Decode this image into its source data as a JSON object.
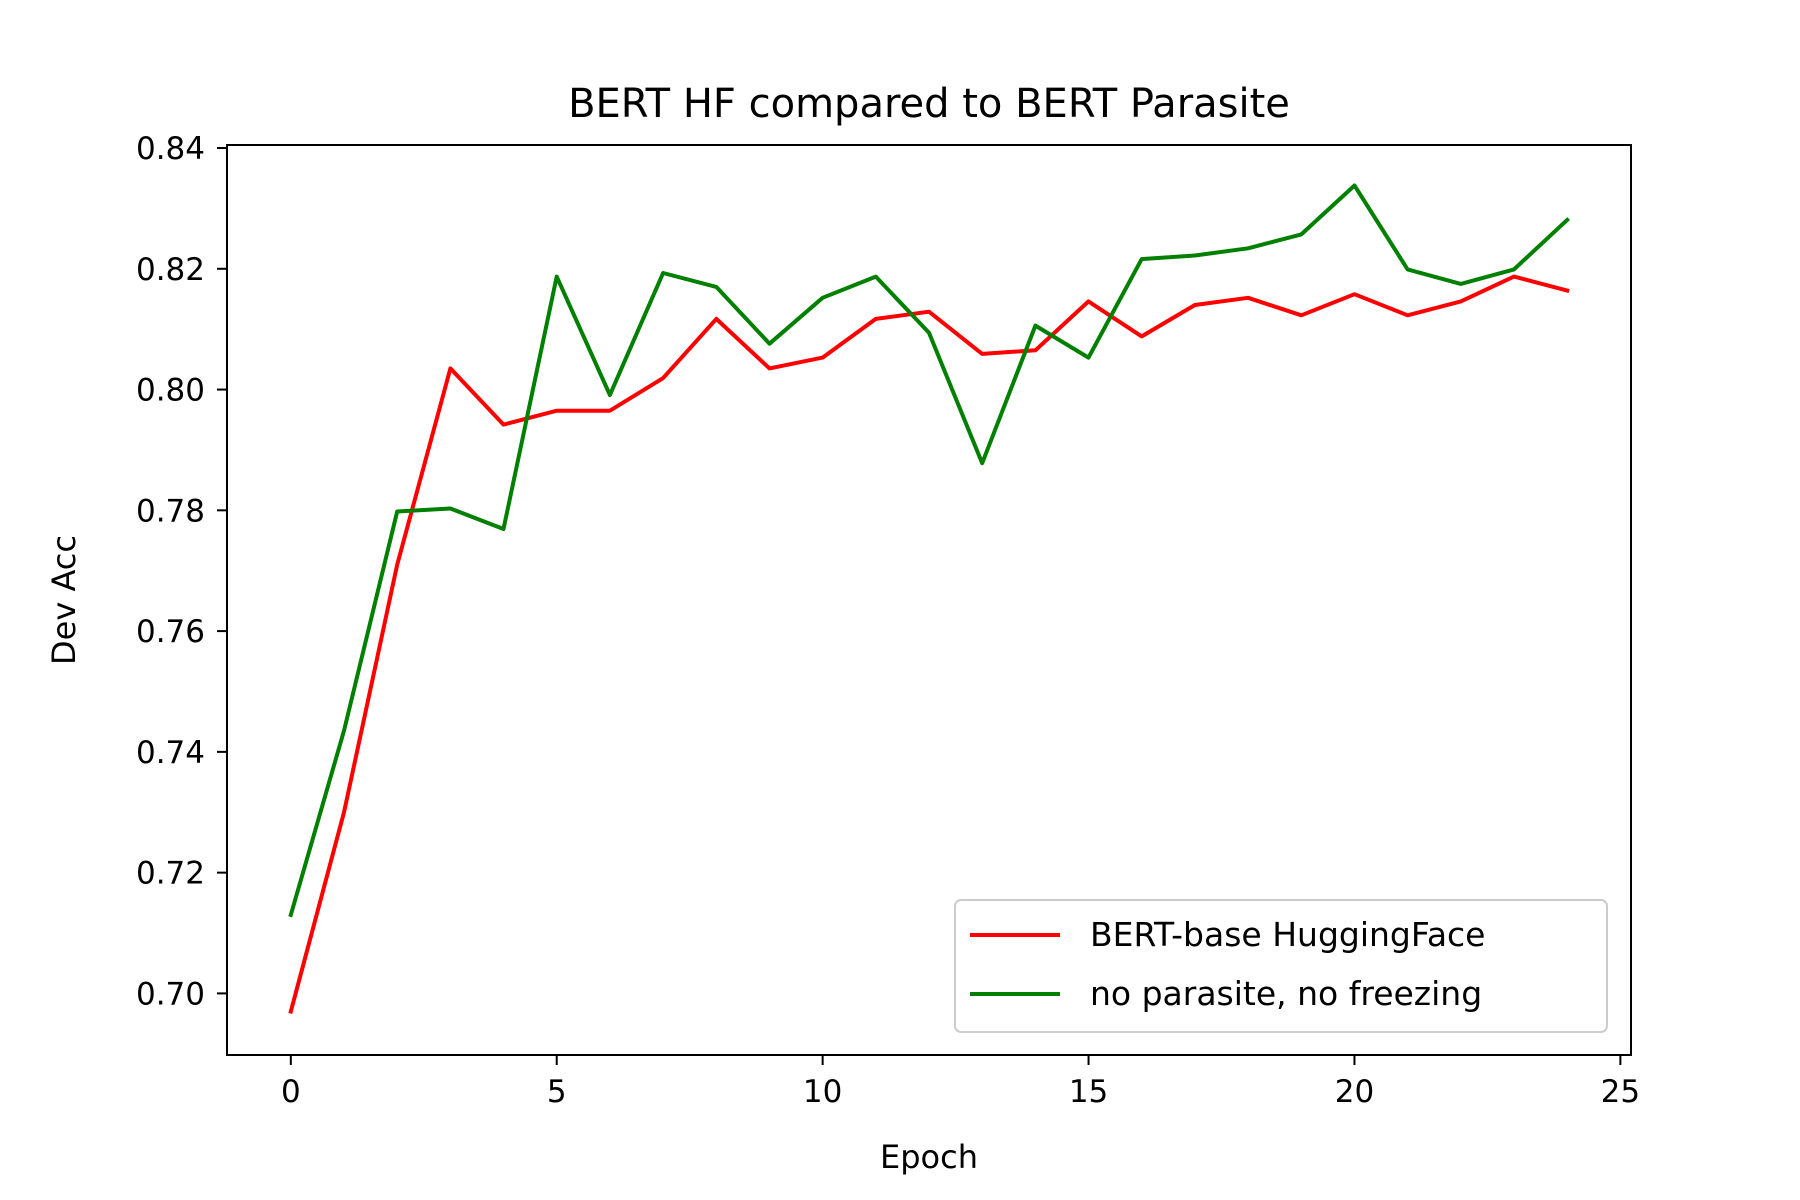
{
  "chart_data": {
    "type": "line",
    "title": "BERT HF compared to BERT Parasite",
    "xlabel": "Epoch",
    "ylabel": "Dev Acc",
    "xlim": [
      -1.2,
      25.2
    ],
    "ylim": [
      0.6898,
      0.8405
    ],
    "xticks": [
      0,
      5,
      10,
      15,
      20,
      25
    ],
    "xtick_labels": [
      "0",
      "5",
      "10",
      "15",
      "20",
      "25"
    ],
    "yticks": [
      0.7,
      0.72,
      0.74,
      0.76,
      0.78,
      0.8,
      0.82,
      0.84
    ],
    "ytick_labels": [
      "0.70",
      "0.72",
      "0.74",
      "0.76",
      "0.78",
      "0.80",
      "0.82",
      "0.84"
    ],
    "grid": false,
    "legend_position": "bottom-right",
    "x": [
      0,
      1,
      2,
      3,
      4,
      5,
      6,
      7,
      8,
      9,
      10,
      11,
      12,
      13,
      14,
      15,
      16,
      17,
      18,
      19,
      20,
      21,
      22,
      23,
      24
    ],
    "series": [
      {
        "name": "BERT-base HuggingFace",
        "color": "#ff0000",
        "values": [
          0.697,
          0.73,
          0.771,
          0.8035,
          0.7942,
          0.7965,
          0.7965,
          0.8019,
          0.8117,
          0.8035,
          0.8053,
          0.8117,
          0.8129,
          0.8059,
          0.8065,
          0.8146,
          0.8088,
          0.814,
          0.8152,
          0.8123,
          0.8158,
          0.8123,
          0.8146,
          0.8187,
          0.8164
        ]
      },
      {
        "name": "no parasite, no freezing",
        "color": "#008000",
        "values": [
          0.713,
          0.7435,
          0.7798,
          0.7803,
          0.7769,
          0.8187,
          0.7991,
          0.8193,
          0.817,
          0.8076,
          0.8152,
          0.8187,
          0.8094,
          0.7878,
          0.8106,
          0.8053,
          0.8216,
          0.8222,
          0.8234,
          0.8257,
          0.8338,
          0.8199,
          0.8175,
          0.8199,
          0.8281
        ]
      }
    ]
  }
}
